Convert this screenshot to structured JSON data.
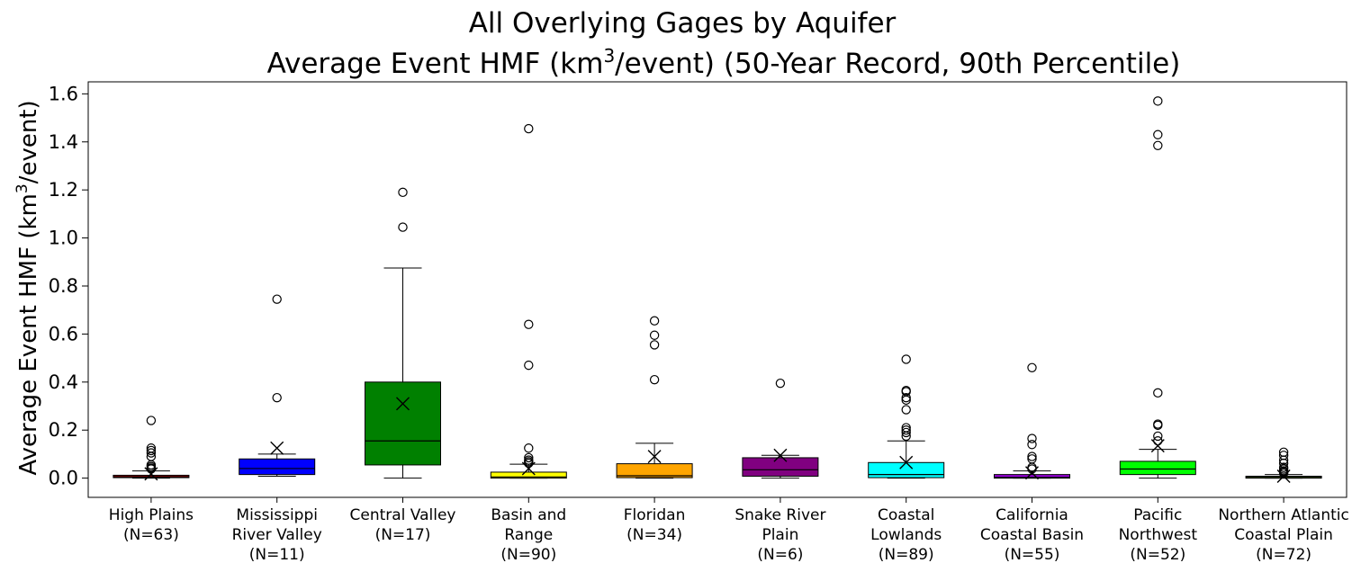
{
  "chart_data": {
    "type": "box",
    "title": "All Overlying Gages by Aquifer",
    "subtitle_prefix": "Average Event HMF (km",
    "subtitle_sup": "3",
    "subtitle_suffix": "/event) (50-Year Record, 90th Percentile)",
    "ylabel_prefix": "Average Event HMF (km",
    "ylabel_sup": "3",
    "ylabel_suffix": "/event)",
    "ylim": [
      -0.08,
      1.65
    ],
    "yticks": [
      {
        "value": 0.0,
        "label": "0.0"
      },
      {
        "value": 0.2,
        "label": "0.2"
      },
      {
        "value": 0.4,
        "label": "0.4"
      },
      {
        "value": 0.6,
        "label": "0.6"
      },
      {
        "value": 0.8,
        "label": "0.8"
      },
      {
        "value": 1.0,
        "label": "1.0"
      },
      {
        "value": 1.2,
        "label": "1.2"
      },
      {
        "value": 1.4,
        "label": "1.4"
      },
      {
        "value": 1.6,
        "label": "1.6"
      }
    ],
    "grid": false,
    "boxes": [
      {
        "label_lines": [
          "High Plains",
          "(N=63)"
        ],
        "color": "#ff0000",
        "q1": 0.002,
        "median": 0.006,
        "q3": 0.012,
        "whisker_low": 0.0,
        "whisker_high": 0.03,
        "mean": 0.018,
        "outliers": [
          0.24,
          0.125,
          0.115,
          0.105,
          0.09,
          0.055,
          0.048,
          0.042,
          0.038
        ]
      },
      {
        "label_lines": [
          "Mississippi",
          "River Valley",
          "(N=11)"
        ],
        "color": "#0000ff",
        "q1": 0.015,
        "median": 0.04,
        "q3": 0.08,
        "whisker_low": 0.008,
        "whisker_high": 0.1,
        "mean": 0.125,
        "outliers": [
          0.745,
          0.335
        ]
      },
      {
        "label_lines": [
          "Central Valley",
          "(N=17)"
        ],
        "color": "#008000",
        "q1": 0.055,
        "median": 0.155,
        "q3": 0.4,
        "whisker_low": 0.0,
        "whisker_high": 0.875,
        "mean": 0.31,
        "outliers": [
          1.19,
          1.045
        ]
      },
      {
        "label_lines": [
          "Basin and",
          "Range",
          "(N=90)"
        ],
        "color": "#ffff00",
        "q1": 0.0,
        "median": 0.005,
        "q3": 0.025,
        "whisker_low": 0.0,
        "whisker_high": 0.058,
        "mean": 0.04,
        "outliers": [
          1.455,
          0.64,
          0.47,
          0.125,
          0.085,
          0.075,
          0.068,
          0.062
        ]
      },
      {
        "label_lines": [
          "Floridan",
          "(N=34)"
        ],
        "color": "#ffa500",
        "q1": 0.002,
        "median": 0.01,
        "q3": 0.06,
        "whisker_low": 0.0,
        "whisker_high": 0.145,
        "mean": 0.09,
        "outliers": [
          0.655,
          0.595,
          0.555,
          0.41
        ]
      },
      {
        "label_lines": [
          "Snake River",
          "Plain",
          "(N=6)"
        ],
        "color": "#800080",
        "q1": 0.008,
        "median": 0.035,
        "q3": 0.085,
        "whisker_low": 0.0,
        "whisker_high": 0.095,
        "mean": 0.095,
        "outliers": [
          0.395
        ]
      },
      {
        "label_lines": [
          "Coastal",
          "Lowlands",
          "(N=89)"
        ],
        "color": "#00ffff",
        "q1": 0.002,
        "median": 0.015,
        "q3": 0.065,
        "whisker_low": 0.0,
        "whisker_high": 0.155,
        "mean": 0.065,
        "outliers": [
          0.495,
          0.365,
          0.36,
          0.335,
          0.325,
          0.285,
          0.21,
          0.2,
          0.19,
          0.175
        ]
      },
      {
        "label_lines": [
          "California",
          "Coastal Basin",
          "(N=55)"
        ],
        "color": "#9400d3",
        "q1": 0.0,
        "median": 0.003,
        "q3": 0.015,
        "whisker_low": 0.0,
        "whisker_high": 0.03,
        "mean": 0.022,
        "outliers": [
          0.46,
          0.165,
          0.14,
          0.09,
          0.08,
          0.045,
          0.038
        ]
      },
      {
        "label_lines": [
          "Pacific",
          "Northwest",
          "(N=52)"
        ],
        "color": "#00ff00",
        "q1": 0.015,
        "median": 0.038,
        "q3": 0.07,
        "whisker_low": 0.0,
        "whisker_high": 0.12,
        "mean": 0.135,
        "outliers": [
          1.57,
          1.43,
          1.385,
          0.355,
          0.225,
          0.22,
          0.175,
          0.155
        ]
      },
      {
        "label_lines": [
          "Northern Atlantic",
          "Coastal Plain",
          "(N=72)"
        ],
        "color": "#9acd32",
        "q1": 0.0,
        "median": 0.003,
        "q3": 0.008,
        "whisker_low": 0.0,
        "whisker_high": 0.015,
        "mean": 0.008,
        "outliers": [
          0.108,
          0.095,
          0.075,
          0.062,
          0.045,
          0.038,
          0.03,
          0.025,
          0.02
        ]
      }
    ]
  }
}
